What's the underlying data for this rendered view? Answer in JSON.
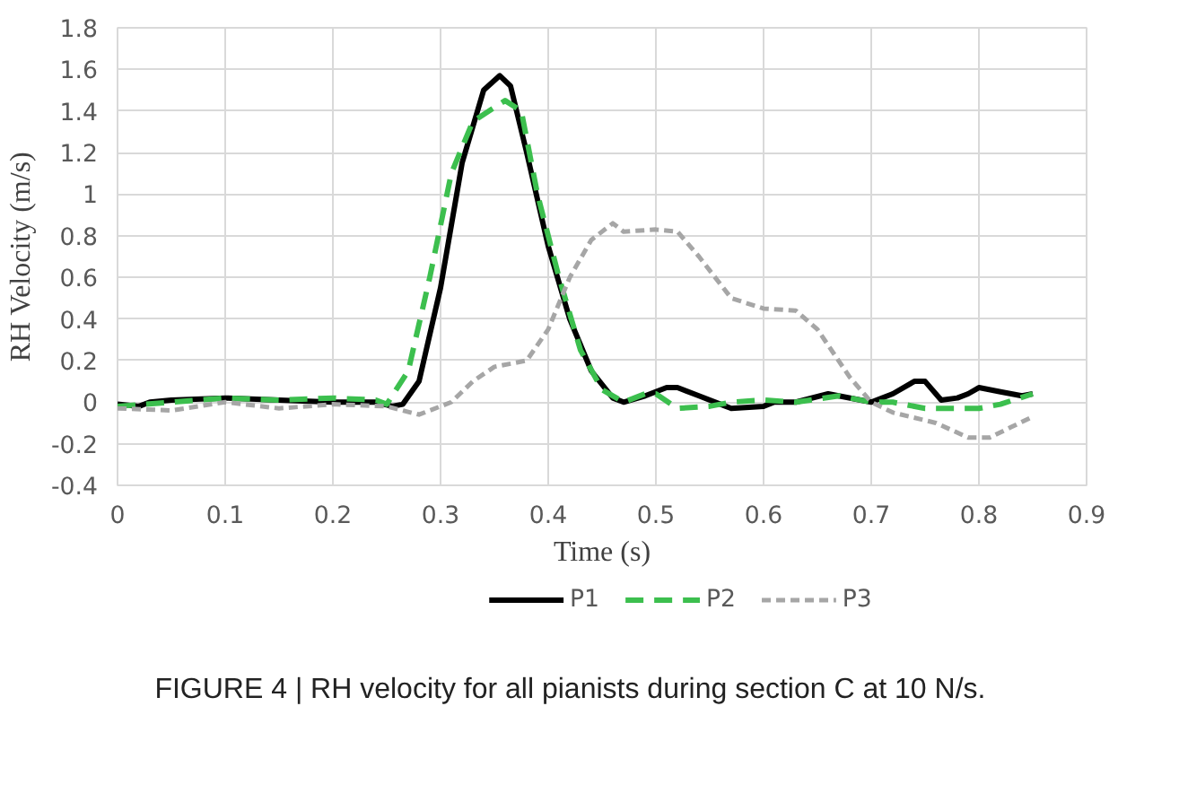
{
  "chart_data": {
    "type": "line",
    "xlabel": "Time (s)",
    "ylabel": "RH Velocity (m/s)",
    "xlim": [
      0,
      0.9
    ],
    "xticks": [
      0,
      0.1,
      0.2,
      0.3,
      0.4,
      0.5,
      0.6,
      0.7,
      0.8,
      0.9
    ],
    "ylim": [
      -0.4,
      1.8
    ],
    "yticks": [
      -0.4,
      -0.2,
      0,
      0.2,
      0.4,
      0.6,
      0.8,
      1,
      1.2,
      1.4,
      1.6,
      1.8
    ],
    "grid": true,
    "legend": "bottom",
    "marker": "none",
    "annotations": [
      "FIGURE 4 | RH velocity for all pianists during section C at 10 N/s."
    ],
    "series": [
      {
        "name": "P1",
        "color": "#000000",
        "line_style": "solid",
        "x": [
          0,
          0.02,
          0.03,
          0.05,
          0.1,
          0.15,
          0.2,
          0.24,
          0.255,
          0.265,
          0.28,
          0.3,
          0.32,
          0.34,
          0.355,
          0.365,
          0.38,
          0.4,
          0.42,
          0.44,
          0.46,
          0.47,
          0.49,
          0.51,
          0.52,
          0.54,
          0.56,
          0.57,
          0.6,
          0.61,
          0.63,
          0.66,
          0.7,
          0.72,
          0.74,
          0.75,
          0.765,
          0.78,
          0.79,
          0.8,
          0.82,
          0.84,
          0.85
        ],
        "values": [
          -0.01,
          -0.02,
          0.0,
          0.01,
          0.02,
          0.01,
          0.0,
          0.0,
          -0.02,
          -0.01,
          0.1,
          0.55,
          1.15,
          1.5,
          1.57,
          1.52,
          1.2,
          0.75,
          0.4,
          0.15,
          0.02,
          0.0,
          0.03,
          0.07,
          0.07,
          0.03,
          -0.01,
          -0.03,
          -0.02,
          0.0,
          0.0,
          0.04,
          0.0,
          0.04,
          0.1,
          0.1,
          0.01,
          0.02,
          0.04,
          0.07,
          0.05,
          0.03,
          0.04
        ]
      },
      {
        "name": "P2",
        "color": "#3cbf4e",
        "line_style": "dashed",
        "x": [
          0,
          0.05,
          0.1,
          0.15,
          0.2,
          0.24,
          0.25,
          0.27,
          0.29,
          0.31,
          0.33,
          0.36,
          0.375,
          0.39,
          0.41,
          0.43,
          0.45,
          0.47,
          0.49,
          0.5,
          0.52,
          0.55,
          0.57,
          0.6,
          0.63,
          0.67,
          0.7,
          0.72,
          0.75,
          0.8,
          0.82,
          0.85
        ],
        "values": [
          -0.02,
          0.0,
          0.02,
          0.01,
          0.02,
          0.01,
          -0.01,
          0.15,
          0.6,
          1.1,
          1.35,
          1.45,
          1.4,
          1.0,
          0.6,
          0.25,
          0.06,
          0.0,
          0.04,
          0.04,
          -0.03,
          -0.02,
          0.0,
          0.01,
          0.0,
          0.03,
          0.0,
          0.0,
          -0.03,
          -0.03,
          -0.01,
          0.04
        ]
      },
      {
        "name": "P3",
        "color": "#a6a6a6",
        "line_style": "dotted",
        "x": [
          0,
          0.05,
          0.1,
          0.15,
          0.2,
          0.25,
          0.28,
          0.31,
          0.33,
          0.35,
          0.38,
          0.4,
          0.42,
          0.44,
          0.46,
          0.47,
          0.5,
          0.52,
          0.54,
          0.57,
          0.6,
          0.63,
          0.65,
          0.68,
          0.7,
          0.72,
          0.76,
          0.79,
          0.81,
          0.83,
          0.85
        ],
        "values": [
          -0.03,
          -0.04,
          0.0,
          -0.03,
          -0.01,
          -0.02,
          -0.06,
          0.0,
          0.1,
          0.17,
          0.2,
          0.35,
          0.6,
          0.78,
          0.86,
          0.82,
          0.83,
          0.82,
          0.7,
          0.5,
          0.45,
          0.44,
          0.35,
          0.12,
          0.0,
          -0.05,
          -0.1,
          -0.17,
          -0.17,
          -0.12,
          -0.07
        ]
      }
    ]
  }
}
